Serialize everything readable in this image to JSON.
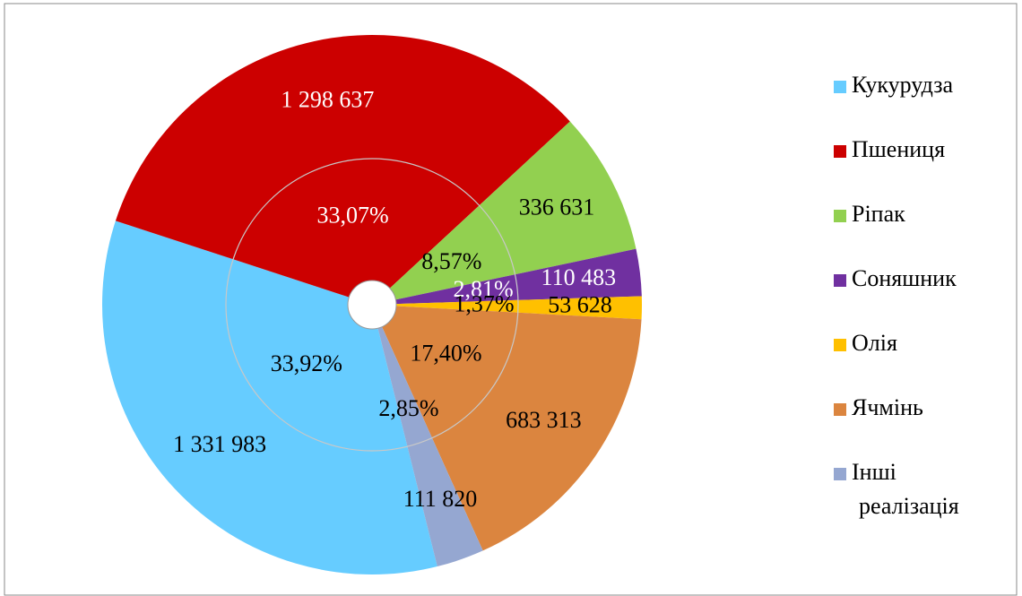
{
  "chart_data": {
    "type": "doughnut",
    "categories": [
      "Кукурудза",
      "Пшениця",
      "Ріпак",
      "Соняшник",
      "Олія",
      "Ячмінь",
      "Інші реалізація"
    ],
    "colors": [
      "#66ccff",
      "#cc0000",
      "#92d050",
      "#7030a0",
      "#ffc000",
      "#db853f",
      "#95a7d1"
    ],
    "series": [
      {
        "values": [
          1331983,
          1298637,
          336631,
          110483,
          53628,
          683313,
          111820
        ],
        "value_labels": [
          "1 331 983",
          "1 298 637",
          "336 631",
          "110 483",
          "53 628",
          "683 313",
          "111 820"
        ]
      },
      {
        "values": [
          33.92,
          33.07,
          8.57,
          2.81,
          1.37,
          17.4,
          2.85
        ],
        "value_labels": [
          "33,92%",
          "33,07%",
          "8,57%",
          "2,81%",
          "1,37%",
          "17,40%",
          "2,85%"
        ]
      }
    ],
    "legend": "right"
  }
}
